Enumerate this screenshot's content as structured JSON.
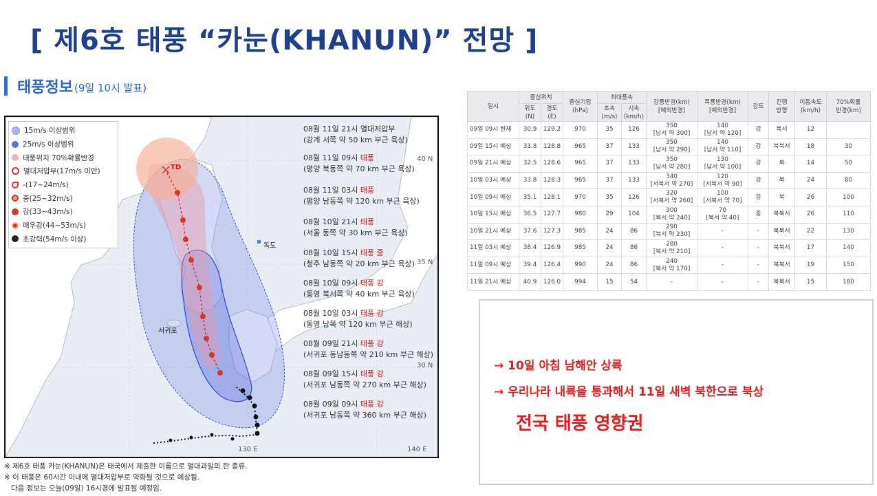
{
  "title": "[ 제6호 태풍 “카눈(KHANUN)” 전망 ]",
  "subheading": {
    "main": "태풍정보",
    "sub": "(9일 10시 발표)"
  },
  "map": {
    "legend": [
      {
        "label": "15m/s 이상범위",
        "color": "#a9b8ef",
        "icon": "circle-light-blue-icon"
      },
      {
        "label": "25m/s 이상범위",
        "color": "#5a6fe0",
        "icon": "circle-blue-icon"
      },
      {
        "label": "태풍위치 70%확률반경",
        "color": "#f1b4b8",
        "icon": "circle-pink-icon"
      },
      {
        "label": "열대저압부(17m/s 미만)",
        "color": "#d9342b",
        "icon": "cross-circle-icon"
      },
      {
        "label": "-(17~24m/s)",
        "color": "#d9342b",
        "icon": "typhoon-weak-icon"
      },
      {
        "label": "중(25~32m/s)",
        "color": "#d9342b",
        "icon": "typhoon-medium-icon"
      },
      {
        "label": "강(33~43m/s)",
        "color": "#d9342b",
        "icon": "typhoon-strong-icon"
      },
      {
        "label": "매우강(44~53m/s)",
        "color": "#d9342b",
        "icon": "typhoon-very-strong-icon"
      },
      {
        "label": "초강력(54m/s 이상)",
        "color": "#222222",
        "icon": "typhoon-super-icon"
      }
    ],
    "annotations": [
      {
        "l1a": "08월 11일 21시 열대저압부",
        "l1b": "",
        "l2": "(강계 서쪽 약 50 km 부근 육상)"
      },
      {
        "l1a": "08월 11일 09시 ",
        "l1b": "태풍",
        "l2": "(평양 북동쪽 약 70 km 부근 육상)"
      },
      {
        "l1a": "08월 11일 03시 ",
        "l1b": "태풍",
        "l2": "(평양 남동쪽 약 120 km 부근 육상)"
      },
      {
        "l1a": "08월 10일 21시 ",
        "l1b": "태풍",
        "l2": "(서울 동쪽 약 30 km 부근 육상)"
      },
      {
        "l1a": "08월 10일 15시 ",
        "l1b": "태풍 중",
        "l2": "(청주 남동쪽 약 20 km 부근 육상)"
      },
      {
        "l1a": "08월 10일 09시 ",
        "l1b": "태풍 강",
        "l2": "(통영 북서쪽 약 40 km 부근 육상)"
      },
      {
        "l1a": "08월 10일 03시 ",
        "l1b": "태풍 강",
        "l2": "(통영 남쪽 약 120 km 부근 해상)"
      },
      {
        "l1a": "08월 09일 21시 ",
        "l1b": "태풍 강",
        "l2": "(서귀포 동남동쪽 약 210 km 부근 해상)"
      },
      {
        "l1a": "08월 09일 15시 ",
        "l1b": "태풍 강",
        "l2": "(서귀포 남동쪽 약 270 km 부근 해상)"
      },
      {
        "l1a": "08월 09일 09시 ",
        "l1b": "태풍 강",
        "l2": "(서귀포 남동쪽 약 360 km 부근 해상)"
      }
    ],
    "places": {
      "dokdo": "독도",
      "seogwipo": "서귀포",
      "td": "TD"
    },
    "grid_labels": {
      "lat40": "40 N",
      "lat35": "35 N",
      "lat30": "30 N",
      "lon130": "130 E",
      "lon140": "140 E"
    }
  },
  "notes": [
    "※ 제6호 태풍 카눈(KHANUN)은 태국에서 제출한 이름으로 열대과일의 한 종류.",
    "※ 이 태풍은 60시간 이내에 열대저압부로 약화될 것으로 예상됨.",
    "   다음 정보는 오늘(09일) 16시경에 발표될 예정임."
  ],
  "table": {
    "headers": {
      "date": "일시",
      "center": "중심위치",
      "lat": "위도\n(N)",
      "lon": "경도\n(E)",
      "pressure": "중심기압\n(hPa)",
      "maxwind": "최대풍속",
      "ms": "초속\n(m/s)",
      "kmh": "시속\n(km/h)",
      "strong_radius": "강풍반경(km)\n[예외반경]",
      "storm_radius": "폭풍반경(km)\n[예외반경]",
      "intensity": "강도",
      "direction": "진행\n방향",
      "speed": "이동속도\n(km/h)",
      "prob": "70%확률\n반경(km)"
    },
    "rows": [
      [
        "09일 09시 현재",
        "30.9",
        "129.2",
        "970",
        "35",
        "126",
        "350\n[남서 약 300]",
        "140\n[남서 약 120]",
        "강",
        "북서",
        "12",
        ""
      ],
      [
        "09일 15시 예상",
        "31.8",
        "128.8",
        "965",
        "37",
        "133",
        "350\n[남서 약 290]",
        "140\n[남서 약 110]",
        "강",
        "북북서",
        "18",
        "30"
      ],
      [
        "09일 21시 예상",
        "32.5",
        "128.6",
        "965",
        "37",
        "133",
        "350\n[남서 약 280]",
        "130\n[남서 약 100]",
        "강",
        "북",
        "14",
        "50"
      ],
      [
        "10일 03시 예상",
        "33.8",
        "128.3",
        "965",
        "37",
        "133",
        "340\n[서북서 약 270]",
        "120\n[서북서 약 90]",
        "강",
        "북",
        "24",
        "80"
      ],
      [
        "10일 09시 예상",
        "35.1",
        "128.1",
        "970",
        "35",
        "126",
        "320\n[서북서 약 260]",
        "100\n[서북서 약 70]",
        "강",
        "북",
        "26",
        "100"
      ],
      [
        "10일 15시 예상",
        "36.5",
        "127.7",
        "980",
        "29",
        "104",
        "300\n[북서 약 240]",
        "70\n[북서 약 40]",
        "중",
        "북북서",
        "26",
        "110"
      ],
      [
        "10일 21시 예상",
        "37.6",
        "127.3",
        "985",
        "24",
        "86",
        "290\n[북서 약 230]",
        "-",
        "-",
        "북북서",
        "22",
        "130"
      ],
      [
        "11일 03시 예상",
        "38.4",
        "126.9",
        "985",
        "24",
        "86",
        "280\n[북서 약 210]",
        "-",
        "-",
        "북북서",
        "17",
        "140"
      ],
      [
        "11일 09시 예상",
        "39.4",
        "126.4",
        "990",
        "24",
        "86",
        "240\n[북서 약 170]",
        "-",
        "-",
        "북북서",
        "19",
        "150"
      ],
      [
        "11일 21시 예상",
        "40.9",
        "126.0",
        "994",
        "15",
        "54",
        "-",
        "-",
        "-",
        "북북서",
        "15",
        "180"
      ]
    ]
  },
  "summary": {
    "line1": "→ 10일 아침 남해안 상륙",
    "line2": "→ 우리나라 내륙을 통과해서 11일 새벽 북한으로 북상",
    "line3": "전국 태풍 영향권"
  }
}
